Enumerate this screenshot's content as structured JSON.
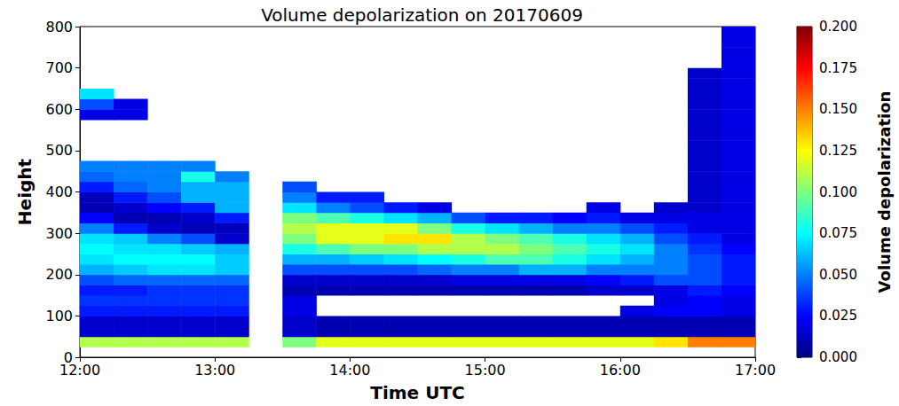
{
  "chart_data": {
    "type": "heatmap",
    "title": "Volume depolarization on 20170609",
    "x_label": "Time UTC",
    "y_label": "Height",
    "xlim": [
      12,
      17
    ],
    "xticks": [
      {
        "value": 12,
        "label": "12:00"
      },
      {
        "value": 13,
        "label": "13:00"
      },
      {
        "value": 14,
        "label": "14:00"
      },
      {
        "value": 15,
        "label": "15:00"
      },
      {
        "value": 16,
        "label": "16:00"
      },
      {
        "value": 17,
        "label": "17:00"
      }
    ],
    "ylim": [
      0,
      800
    ],
    "yticks": [
      0,
      100,
      200,
      300,
      400,
      500,
      600,
      700,
      800
    ],
    "grid": false,
    "x_bins": [
      12,
      12.25,
      12.5,
      12.75,
      13,
      13.25,
      13.5,
      13.75,
      14,
      14.25,
      14.5,
      14.75,
      15,
      15.25,
      15.5,
      15.75,
      16,
      16.25,
      16.5,
      16.75,
      17
    ],
    "y_bins": [
      0,
      25,
      50,
      75,
      100,
      125,
      150,
      175,
      200,
      225,
      250,
      275,
      300,
      325,
      350,
      375,
      400,
      425,
      450,
      475,
      500,
      525,
      550,
      575,
      600,
      625,
      650,
      675,
      700,
      725,
      750,
      775,
      800
    ],
    "cells": [
      [
        null,
        0.11,
        0.015,
        0.015,
        0.03,
        0.035,
        0.03,
        0.04,
        0.06,
        0.07,
        0.075,
        0.07,
        0.05,
        0.025,
        0.01,
        0.012,
        0.03,
        0.045,
        0.05,
        null,
        null,
        null,
        null,
        0.02,
        0.04,
        0.07,
        null,
        null,
        null,
        null,
        null,
        null
      ],
      [
        null,
        0.11,
        0.015,
        0.015,
        0.03,
        0.035,
        0.03,
        0.045,
        0.065,
        0.075,
        0.07,
        0.065,
        0.03,
        0.01,
        0.015,
        0.03,
        0.045,
        0.05,
        0.05,
        null,
        null,
        null,
        null,
        0.02,
        0.02,
        null,
        null,
        null,
        null,
        null,
        null,
        null
      ],
      [
        null,
        0.11,
        0.015,
        0.015,
        0.03,
        0.035,
        0.035,
        0.045,
        0.07,
        0.075,
        0.07,
        0.05,
        0.015,
        0.01,
        0.025,
        0.04,
        0.05,
        0.05,
        0.05,
        null,
        null,
        null,
        null,
        null,
        null,
        null,
        null,
        null,
        null,
        null,
        null,
        null
      ],
      [
        null,
        0.11,
        0.015,
        0.015,
        0.03,
        0.035,
        0.035,
        0.045,
        0.07,
        0.075,
        0.065,
        0.04,
        0.012,
        0.015,
        0.03,
        0.06,
        0.06,
        0.08,
        0.05,
        null,
        null,
        null,
        null,
        null,
        null,
        null,
        null,
        null,
        null,
        null,
        null,
        null
      ],
      [
        null,
        0.11,
        0.015,
        0.015,
        0.03,
        0.035,
        0.035,
        0.045,
        0.065,
        0.065,
        0.06,
        0.015,
        0.012,
        0.03,
        0.06,
        0.06,
        0.06,
        0.05,
        null,
        null,
        null,
        null,
        null,
        null,
        null,
        null,
        null,
        null,
        null,
        null,
        null,
        null
      ],
      [
        null,
        null,
        null,
        null,
        null,
        null,
        null,
        null,
        null,
        null,
        null,
        null,
        null,
        null,
        null,
        null,
        null,
        null,
        null,
        null,
        null,
        null,
        null,
        null,
        null,
        null,
        null,
        null,
        null,
        null,
        null,
        null
      ],
      [
        null,
        0.1,
        0.015,
        0.015,
        0.02,
        0.02,
        0.01,
        0.015,
        0.04,
        0.06,
        0.08,
        0.1,
        0.11,
        0.1,
        0.07,
        0.05,
        0.04,
        null,
        null,
        null,
        null,
        null,
        null,
        null,
        null,
        null,
        null,
        null,
        null,
        null,
        null,
        null
      ],
      [
        null,
        0.12,
        0.01,
        0.01,
        null,
        null,
        0.01,
        0.015,
        0.04,
        0.06,
        0.09,
        0.12,
        0.12,
        0.09,
        0.05,
        0.03,
        null,
        null,
        null,
        null,
        null,
        null,
        null,
        null,
        null,
        null,
        null,
        null,
        null,
        null,
        null,
        null
      ],
      [
        null,
        0.12,
        0.01,
        0.01,
        null,
        null,
        0.01,
        0.015,
        0.04,
        0.065,
        0.1,
        0.12,
        0.12,
        0.08,
        0.04,
        0.03,
        null,
        null,
        null,
        null,
        null,
        null,
        null,
        null,
        null,
        null,
        null,
        null,
        null,
        null,
        null,
        null
      ],
      [
        null,
        0.12,
        0.01,
        0.01,
        null,
        null,
        0.01,
        0.015,
        0.04,
        0.07,
        0.1,
        0.13,
        0.12,
        0.07,
        0.03,
        null,
        null,
        null,
        null,
        null,
        null,
        null,
        null,
        null,
        null,
        null,
        null,
        null,
        null,
        null,
        null,
        null
      ],
      [
        null,
        0.12,
        0.01,
        0.01,
        null,
        null,
        0.01,
        0.015,
        0.045,
        0.075,
        0.11,
        0.13,
        0.1,
        0.06,
        0.02,
        null,
        null,
        null,
        null,
        null,
        null,
        null,
        null,
        null,
        null,
        null,
        null,
        null,
        null,
        null,
        null,
        null
      ],
      [
        null,
        0.12,
        0.01,
        0.01,
        null,
        null,
        0.01,
        0.02,
        0.05,
        0.08,
        0.11,
        0.11,
        0.08,
        0.04,
        null,
        null,
        null,
        null,
        null,
        null,
        null,
        null,
        null,
        null,
        null,
        null,
        null,
        null,
        null,
        null,
        null,
        null
      ],
      [
        null,
        0.12,
        0.01,
        0.01,
        null,
        null,
        0.01,
        0.02,
        0.05,
        0.09,
        0.11,
        0.1,
        0.07,
        0.03,
        null,
        null,
        null,
        null,
        null,
        null,
        null,
        null,
        null,
        null,
        null,
        null,
        null,
        null,
        null,
        null,
        null,
        null
      ],
      [
        null,
        0.12,
        0.01,
        0.01,
        null,
        null,
        0.01,
        0.02,
        0.06,
        0.09,
        0.1,
        0.09,
        0.06,
        0.03,
        null,
        null,
        null,
        null,
        null,
        null,
        null,
        null,
        null,
        null,
        null,
        null,
        null,
        null,
        null,
        null,
        null,
        null
      ],
      [
        null,
        0.12,
        0.01,
        0.01,
        null,
        null,
        0.01,
        0.02,
        0.06,
        0.08,
        0.09,
        0.08,
        0.05,
        0.025,
        null,
        null,
        null,
        null,
        null,
        null,
        null,
        null,
        null,
        null,
        null,
        null,
        null,
        null,
        null,
        null,
        null,
        null
      ],
      [
        null,
        0.12,
        0.01,
        0.01,
        null,
        null,
        0.015,
        0.025,
        0.05,
        0.07,
        0.08,
        0.07,
        0.05,
        0.03,
        0.02,
        null,
        null,
        null,
        null,
        null,
        null,
        null,
        null,
        null,
        null,
        null,
        null,
        null,
        null,
        null,
        null,
        null
      ],
      [
        null,
        0.12,
        0.01,
        0.01,
        0.02,
        null,
        0.015,
        0.03,
        0.05,
        0.06,
        0.07,
        0.06,
        0.04,
        0.02,
        null,
        null,
        null,
        null,
        null,
        null,
        null,
        null,
        null,
        null,
        null,
        null,
        null,
        null,
        null,
        null,
        null,
        null
      ],
      [
        null,
        0.13,
        0.01,
        0.01,
        0.025,
        0.02,
        0.02,
        0.04,
        0.05,
        0.05,
        0.05,
        0.04,
        0.03,
        0.02,
        0.015,
        null,
        null,
        null,
        null,
        null,
        null,
        null,
        null,
        null,
        null,
        null,
        null,
        null,
        null,
        null,
        null,
        null
      ],
      [
        null,
        0.15,
        0.01,
        0.01,
        0.025,
        0.025,
        0.03,
        0.04,
        0.04,
        0.04,
        0.035,
        0.03,
        0.02,
        0.02,
        0.015,
        0.015,
        0.015,
        0.015,
        0.015,
        0.015,
        0.015,
        0.015,
        0.015,
        0.015,
        0.015,
        0.015,
        0.015,
        0.015,
        null,
        null,
        null,
        null
      ],
      [
        null,
        0.15,
        0.01,
        0.01,
        0.02,
        0.02,
        0.025,
        0.03,
        0.03,
        0.03,
        0.025,
        0.02,
        0.02,
        0.02,
        0.02,
        0.02,
        0.02,
        0.02,
        0.02,
        0.02,
        0.02,
        0.02,
        0.02,
        0.02,
        0.02,
        0.02,
        0.02,
        0.02,
        0.02,
        0.02,
        0.02,
        0.02
      ]
    ],
    "colorbar": {
      "label": "Volume depolarization",
      "range": [
        0,
        0.2
      ],
      "ticks": [
        {
          "value": 0,
          "label": "0.000"
        },
        {
          "value": 0.025,
          "label": "0.025"
        },
        {
          "value": 0.05,
          "label": "0.050"
        },
        {
          "value": 0.075,
          "label": "0.075"
        },
        {
          "value": 0.1,
          "label": "0.100"
        },
        {
          "value": 0.125,
          "label": "0.125"
        },
        {
          "value": 0.15,
          "label": "0.150"
        },
        {
          "value": 0.175,
          "label": "0.175"
        },
        {
          "value": 0.2,
          "label": "0.200"
        }
      ]
    }
  }
}
